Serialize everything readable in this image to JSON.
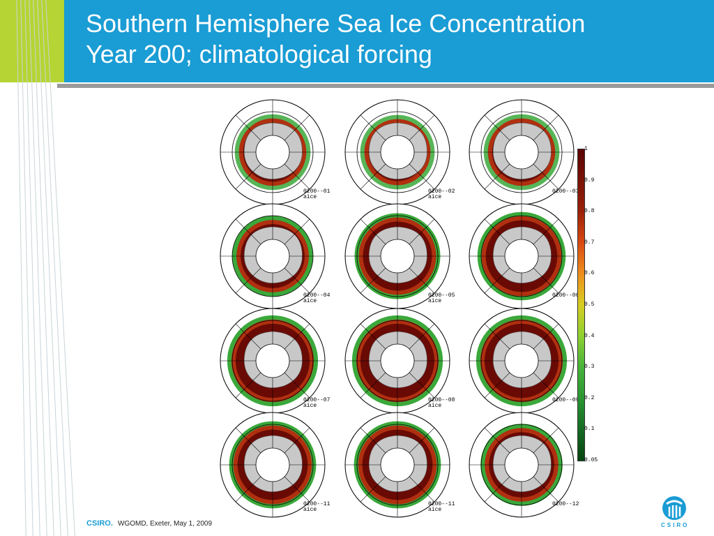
{
  "header": {
    "title_line1": "Southern Hemisphere Sea Ice Concentration",
    "title_line2": "Year 200; climatological forcing"
  },
  "maps": [
    {
      "label": "0200--01\naice"
    },
    {
      "label": "0200--02\naice"
    },
    {
      "label": "0200--03"
    },
    {
      "label": "0200--04\naice"
    },
    {
      "label": "0200--05\naice"
    },
    {
      "label": "0200--06"
    },
    {
      "label": "0200--07\naice"
    },
    {
      "label": "0200--08\naice"
    },
    {
      "label": "0200--09"
    },
    {
      "label": "0200--11\naice"
    },
    {
      "label": "0200--11\naice"
    },
    {
      "label": "0200--12"
    }
  ],
  "colorbar": {
    "ticks": [
      "1",
      "0.9",
      "0.8",
      "0.7",
      "0.6",
      "0.5",
      "0.4",
      "0.3",
      "0.2",
      "0.1",
      "0.05"
    ]
  },
  "footer": {
    "brand": "CSIRO.",
    "text": "WGOMD, Exeter, May 1, 2009",
    "logo_text": "CSIRO"
  },
  "colors": {
    "header_blue": "#1a9cd4",
    "accent_green": "#b6d433"
  }
}
